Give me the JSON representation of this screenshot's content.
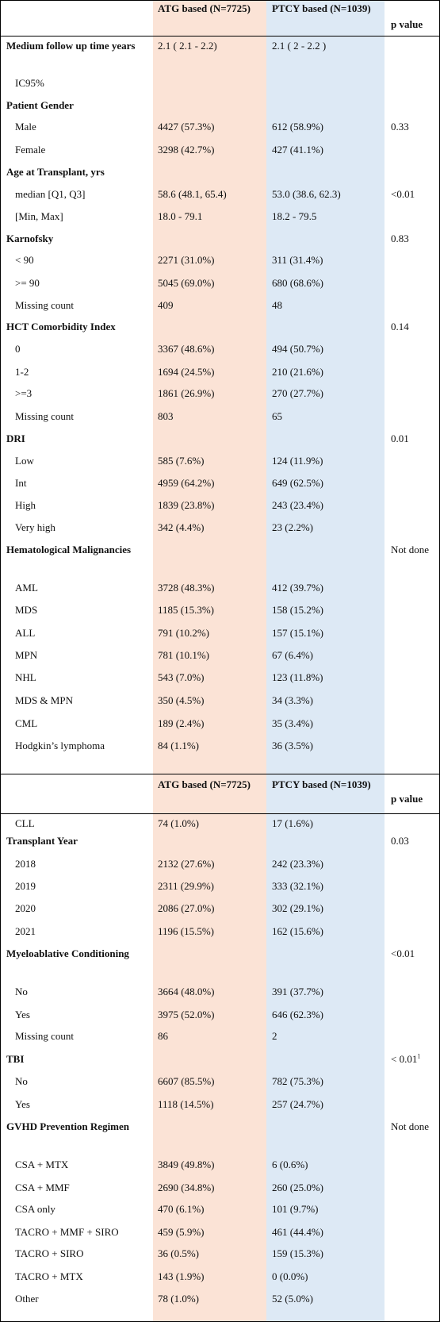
{
  "table1": {
    "header": {
      "atg": "ATG based (N=7725)",
      "ptcy": "PTCY based (N=1039)",
      "pval": "p value"
    },
    "rows": [
      {
        "label": "Medium follow up time years",
        "atg": "2.1 ( 2.1 - 2.2)",
        "ptcy": "2.1 ( 2 - 2.2 )",
        "pval": "",
        "bold": true
      },
      {
        "label": "IC95%",
        "atg": "",
        "ptcy": "",
        "pval": ""
      },
      {
        "label": "Patient Gender",
        "atg": "",
        "ptcy": "",
        "pval": "",
        "bold": true
      },
      {
        "label": "Male",
        "atg": "4427 (57.3%)",
        "ptcy": "612 (58.9%)",
        "pval": "0.33"
      },
      {
        "label": "Female",
        "atg": "3298 (42.7%)",
        "ptcy": "427 (41.1%)",
        "pval": ""
      },
      {
        "label": "Age at Transplant, yrs",
        "atg": "",
        "ptcy": "",
        "pval": "",
        "bold": true
      },
      {
        "label": "median [Q1, Q3]",
        "atg": "58.6 (48.1, 65.4)",
        "ptcy": "53.0 (38.6, 62.3)",
        "pval": "<0.01"
      },
      {
        "label": "[Min, Max]",
        "atg": "18.0 - 79.1",
        "ptcy": "18.2 - 79.5",
        "pval": ""
      },
      {
        "label": "Karnofsky",
        "atg": "",
        "ptcy": "",
        "pval": "0.83",
        "bold": true
      },
      {
        "label": "< 90",
        "atg": "2271 (31.0%)",
        "ptcy": "311 (31.4%)",
        "pval": ""
      },
      {
        "label": ">= 90",
        "atg": "5045 (69.0%)",
        "ptcy": "680 (68.6%)",
        "pval": ""
      },
      {
        "label": "Missing count",
        "atg": "409",
        "ptcy": "48",
        "pval": ""
      },
      {
        "label": "HCT Comorbidity Index",
        "atg": "",
        "ptcy": "",
        "pval": "0.14",
        "bold": true
      },
      {
        "label": "0",
        "atg": "3367 (48.6%)",
        "ptcy": "494 (50.7%)",
        "pval": ""
      },
      {
        "label": "1-2",
        "atg": "1694 (24.5%)",
        "ptcy": "210 (21.6%)",
        "pval": ""
      },
      {
        "label": ">=3",
        "atg": "1861 (26.9%)",
        "ptcy": "270 (27.7%)",
        "pval": ""
      },
      {
        "label": "Missing count",
        "atg": "803",
        "ptcy": "65",
        "pval": ""
      },
      {
        "label": "DRI",
        "atg": "",
        "ptcy": "",
        "pval": "0.01",
        "bold": true
      },
      {
        "label": "Low",
        "atg": "585 (7.6%)",
        "ptcy": "124 (11.9%)",
        "pval": ""
      },
      {
        "label": "Int",
        "atg": "4959 (64.2%)",
        "ptcy": "649 (62.5%)",
        "pval": ""
      },
      {
        "label": "High",
        "atg": "1839 (23.8%)",
        "ptcy": "243 (23.4%)",
        "pval": ""
      },
      {
        "label": "Very high",
        "atg": "342 (4.4%)",
        "ptcy": "23 (2.2%)",
        "pval": ""
      },
      {
        "label": "Hematological Malignancies",
        "atg": "",
        "ptcy": "",
        "pval": "Not done",
        "bold": true
      },
      {
        "label": "AML",
        "atg": "3728 (48.3%)",
        "ptcy": "412 (39.7%)",
        "pval": ""
      },
      {
        "label": "MDS",
        "atg": "1185 (15.3%)",
        "ptcy": "158 (15.2%)",
        "pval": ""
      },
      {
        "label": "ALL",
        "atg": "791 (10.2%)",
        "ptcy": "157 (15.1%)",
        "pval": ""
      },
      {
        "label": "MPN",
        "atg": "781 (10.1%)",
        "ptcy": "67 (6.4%)",
        "pval": ""
      },
      {
        "label": "NHL",
        "atg": "543 (7.0%)",
        "ptcy": "123 (11.8%)",
        "pval": ""
      },
      {
        "label": "MDS & MPN",
        "atg": "350 (4.5%)",
        "ptcy": "34 (3.3%)",
        "pval": ""
      },
      {
        "label": "CML",
        "atg": "189 (2.4%)",
        "ptcy": "35 (3.4%)",
        "pval": ""
      },
      {
        "label": "Hodgkin’s lymphoma",
        "atg": "84 (1.1%)",
        "ptcy": "36 (3.5%)",
        "pval": ""
      }
    ]
  },
  "table2": {
    "header": {
      "atg": "ATG based (N=7725)",
      "ptcy": "PTCY based (N=1039)",
      "pval": "p value"
    },
    "rows": [
      {
        "label": "CLL",
        "atg": "74 (1.0%)",
        "ptcy": "17 (1.6%)",
        "pval": ""
      },
      {
        "label": "Transplant Year",
        "atg": "",
        "ptcy": "",
        "pval": "0.03",
        "bold": true
      },
      {
        "label": "2018",
        "atg": "2132 (27.6%)",
        "ptcy": "242 (23.3%)",
        "pval": ""
      },
      {
        "label": "2019",
        "atg": "2311 (29.9%)",
        "ptcy": "333 (32.1%)",
        "pval": ""
      },
      {
        "label": "2020",
        "atg": "2086 (27.0%)",
        "ptcy": "302 (29.1%)",
        "pval": ""
      },
      {
        "label": "2021",
        "atg": "1196 (15.5%)",
        "ptcy": "162 (15.6%)",
        "pval": ""
      },
      {
        "label": "Myeloablative Conditioning",
        "atg": "",
        "ptcy": "",
        "pval": "<0.01",
        "bold": true
      },
      {
        "label": "No",
        "atg": "3664 (48.0%)",
        "ptcy": "391 (37.7%)",
        "pval": ""
      },
      {
        "label": "Yes",
        "atg": "3975 (52.0%)",
        "ptcy": "646 (62.3%)",
        "pval": ""
      },
      {
        "label": "Missing count",
        "atg": "86",
        "ptcy": "2",
        "pval": ""
      },
      {
        "label": "TBI",
        "atg": "",
        "ptcy": "",
        "pval": "< 0.01",
        "sup": "1",
        "bold": true
      },
      {
        "label": "No",
        "atg": "6607 (85.5%)",
        "ptcy": "782 (75.3%)",
        "pval": ""
      },
      {
        "label": "Yes",
        "atg": "1118 (14.5%)",
        "ptcy": "257 (24.7%)",
        "pval": ""
      },
      {
        "label": "GVHD Prevention Regimen",
        "atg": "",
        "ptcy": "",
        "pval": "Not done",
        "bold": true
      },
      {
        "label": "CSA + MTX",
        "atg": "3849 (49.8%)",
        "ptcy": "6 (0.6%)",
        "pval": ""
      },
      {
        "label": "CSA + MMF",
        "atg": "2690 (34.8%)",
        "ptcy": "260 (25.0%)",
        "pval": ""
      },
      {
        "label": "CSA only",
        "atg": "470 (6.1%)",
        "ptcy": "101 (9.7%)",
        "pval": ""
      },
      {
        "label": "TACRO + MMF + SIRO",
        "atg": "459 (5.9%)",
        "ptcy": "461 (44.4%)",
        "pval": ""
      },
      {
        "label": "TACRO + SIRO",
        "atg": "36 (0.5%)",
        "ptcy": "159 (15.3%)",
        "pval": ""
      },
      {
        "label": "TACRO + MTX",
        "atg": "143 (1.9%)",
        "ptcy": "0 (0.0%)",
        "pval": ""
      },
      {
        "label": "Other",
        "atg": "78 (1.0%)",
        "ptcy": "52 (5.0%)",
        "pval": ""
      }
    ]
  }
}
